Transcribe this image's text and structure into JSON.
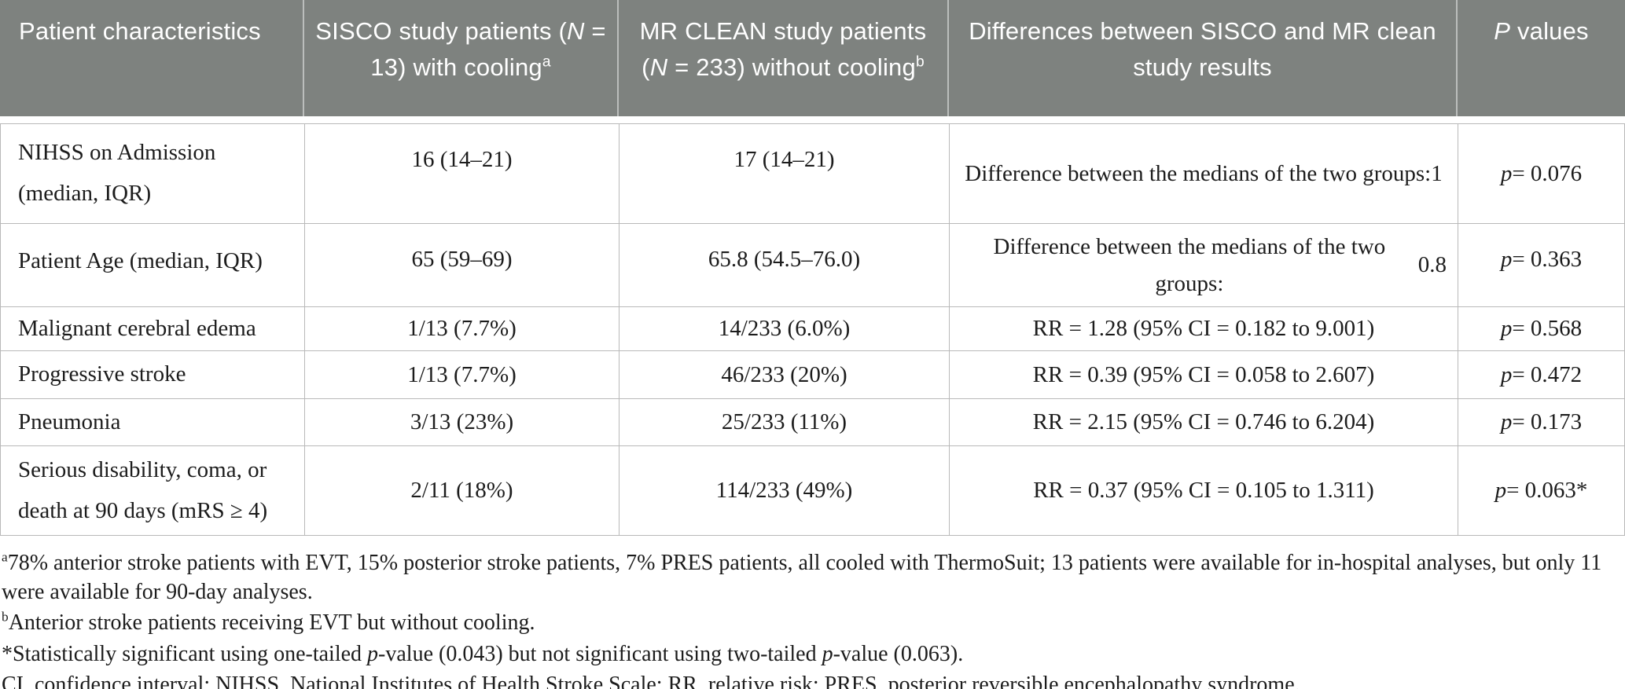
{
  "colors": {
    "header_bg": "#7e827f",
    "header_text": "#ffffff",
    "border": "#b9b9b9",
    "text": "#1c1c1c"
  },
  "table": {
    "columns": [
      {
        "label": "Patient characteristics",
        "segments": [
          {
            "t": "Patient characteristics"
          }
        ]
      },
      {
        "label": "SISCO study patients (N = 13) with cooling(a)",
        "segments": [
          {
            "t": "SISCO study patients ("
          },
          {
            "t": "N",
            "i": true
          },
          {
            "t": " = 13) with cooling"
          },
          {
            "t": "a",
            "sup": true
          }
        ]
      },
      {
        "label": "MR CLEAN study patients (N = 233) without cooling(b)",
        "segments": [
          {
            "t": "MR CLEAN study patients ("
          },
          {
            "t": "N",
            "i": true
          },
          {
            "t": " = 233) without cooling"
          },
          {
            "t": "b",
            "sup": true
          }
        ]
      },
      {
        "label": "Differences between SISCO and MR clean study results",
        "segments": [
          {
            "t": "Differences between SISCO and MR clean study results"
          }
        ]
      },
      {
        "label": "P values",
        "segments": [
          {
            "t": "P",
            "i": true
          },
          {
            "t": " values"
          }
        ]
      }
    ],
    "rows": [
      {
        "characteristic": [
          {
            "t": "NIHSS on Admission (median, IQR)"
          }
        ],
        "sisco": [
          {
            "t": "16 (14–21)"
          }
        ],
        "mr_clean": [
          {
            "t": "17 (14–21)"
          }
        ],
        "difference": [
          {
            "t": "Difference between the medians of the two groups:"
          },
          {
            "br": true
          },
          {
            "t": "1"
          }
        ],
        "p_value": [
          {
            "t": "p",
            "i": true
          },
          {
            "t": " = 0.076"
          }
        ]
      },
      {
        "characteristic": [
          {
            "t": "Patient Age (median, IQR)"
          }
        ],
        "sisco": [
          {
            "t": "65 (59–69)"
          }
        ],
        "mr_clean": [
          {
            "t": "65.8 (54.5–76.0)"
          }
        ],
        "difference": [
          {
            "t": "Difference between the medians of the two groups:"
          },
          {
            "br": true
          },
          {
            "t": "0.8"
          }
        ],
        "p_value": [
          {
            "t": "p",
            "i": true
          },
          {
            "t": " = 0.363"
          }
        ]
      },
      {
        "characteristic": [
          {
            "t": "Malignant cerebral edema"
          }
        ],
        "sisco": [
          {
            "t": "1/13 (7.7%)"
          }
        ],
        "mr_clean": [
          {
            "t": "14/233 (6.0%)"
          }
        ],
        "difference": [
          {
            "t": "RR = 1.28 (95% CI = 0.182 to 9.001)"
          }
        ],
        "p_value": [
          {
            "t": "p",
            "i": true
          },
          {
            "t": " = 0.568"
          }
        ]
      },
      {
        "characteristic": [
          {
            "t": "Progressive stroke"
          }
        ],
        "sisco": [
          {
            "t": "1/13 (7.7%)"
          }
        ],
        "mr_clean": [
          {
            "t": "46/233 (20%)"
          }
        ],
        "difference": [
          {
            "t": "RR = 0.39 (95% CI = 0.058 to 2.607)"
          }
        ],
        "p_value": [
          {
            "t": "p",
            "i": true
          },
          {
            "t": " = 0.472"
          }
        ]
      },
      {
        "characteristic": [
          {
            "t": "Pneumonia"
          }
        ],
        "sisco": [
          {
            "t": "3/13 (23%)"
          }
        ],
        "mr_clean": [
          {
            "t": "25/233 (11%)"
          }
        ],
        "difference": [
          {
            "t": "RR = 2.15 (95% CI = 0.746 to 6.204)"
          }
        ],
        "p_value": [
          {
            "t": "p",
            "i": true
          },
          {
            "t": " = 0.173"
          }
        ]
      },
      {
        "characteristic": [
          {
            "t": "Serious disability, coma, or death at 90 days (mRS ≥ 4)"
          }
        ],
        "sisco": [
          {
            "t": "2/11 (18%)"
          }
        ],
        "mr_clean": [
          {
            "t": "114/233 (49%)"
          }
        ],
        "difference": [
          {
            "t": "RR = 0.37 (95% CI = 0.105 to 1.311)"
          }
        ],
        "p_value": [
          {
            "t": "p",
            "i": true
          },
          {
            "t": " = 0.063*"
          }
        ]
      }
    ]
  },
  "footnotes": [
    {
      "segments": [
        {
          "t": "a",
          "sup": true
        },
        {
          "t": "78% anterior stroke patients with EVT, 15% posterior stroke patients, 7% PRES patients, all cooled with ThermoSuit; 13 patients were available for in-hospital analyses, but only 11 were available for 90-day analyses."
        }
      ]
    },
    {
      "segments": [
        {
          "t": "b",
          "sup": true
        },
        {
          "t": "Anterior stroke patients receiving EVT but without cooling."
        }
      ]
    },
    {
      "segments": [
        {
          "t": "*Statistically significant using one-tailed "
        },
        {
          "t": "p",
          "i": true
        },
        {
          "t": "-value (0.043) but not significant using two-tailed "
        },
        {
          "t": "p",
          "i": true
        },
        {
          "t": "-value (0.063)."
        }
      ]
    },
    {
      "segments": [
        {
          "t": "CI, confidence interval; NIHSS, National Institutes of Health Stroke Scale; RR, relative risk; PRES, posterior reversible encephalopathy syndrome."
        }
      ]
    }
  ]
}
